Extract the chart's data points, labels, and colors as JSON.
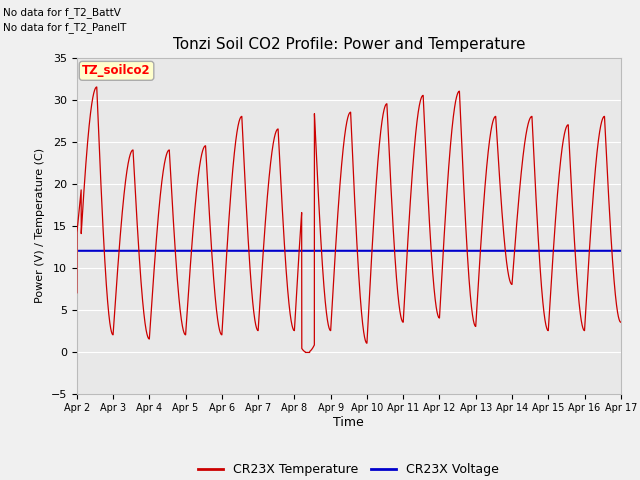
{
  "title": "Tonzi Soil CO2 Profile: Power and Temperature",
  "ylabel": "Power (V) / Temperature (C)",
  "xlabel": "Time",
  "xlim_days": [
    2,
    17
  ],
  "ylim": [
    -5,
    35
  ],
  "yticks": [
    -5,
    0,
    5,
    10,
    15,
    20,
    25,
    30,
    35
  ],
  "xtick_labels": [
    "Apr 2",
    "Apr 3",
    "Apr 4",
    "Apr 5",
    "Apr 6",
    "Apr 7",
    "Apr 8",
    "Apr 9",
    "Apr 10",
    "Apr 11",
    "Apr 12",
    "Apr 13",
    "Apr 14",
    "Apr 15",
    "Apr 16",
    "Apr 17"
  ],
  "annotation_lines": [
    "No data for f_T2_BattV",
    "No data for f_T2_PanelT"
  ],
  "legend_box_label": "TZ_soilco2",
  "legend_box_color": "#ffffcc",
  "legend_box_border": "#aaaaaa",
  "temp_color": "#cc0000",
  "voltage_color": "#0000cc",
  "voltage_value": 12.0,
  "bg_color": "#e8e8e8",
  "grid_color": "#ffffff",
  "legend_temp_label": "CR23X Temperature",
  "legend_voltage_label": "CR23X Voltage",
  "peaks": [
    31.5,
    24.0,
    24.0,
    24.5,
    28.0,
    26.5,
    28.5,
    28.5,
    29.5,
    30.5,
    31.0,
    28.0,
    28.0,
    27.0,
    28.0,
    28.5
  ],
  "troughs": [
    5.0,
    2.0,
    1.5,
    2.0,
    2.0,
    2.5,
    2.5,
    2.5,
    1.0,
    3.5,
    4.0,
    3.0,
    8.0,
    2.5,
    2.5,
    3.5
  ],
  "start_value": 7.0,
  "near_zero_day": 8.35
}
